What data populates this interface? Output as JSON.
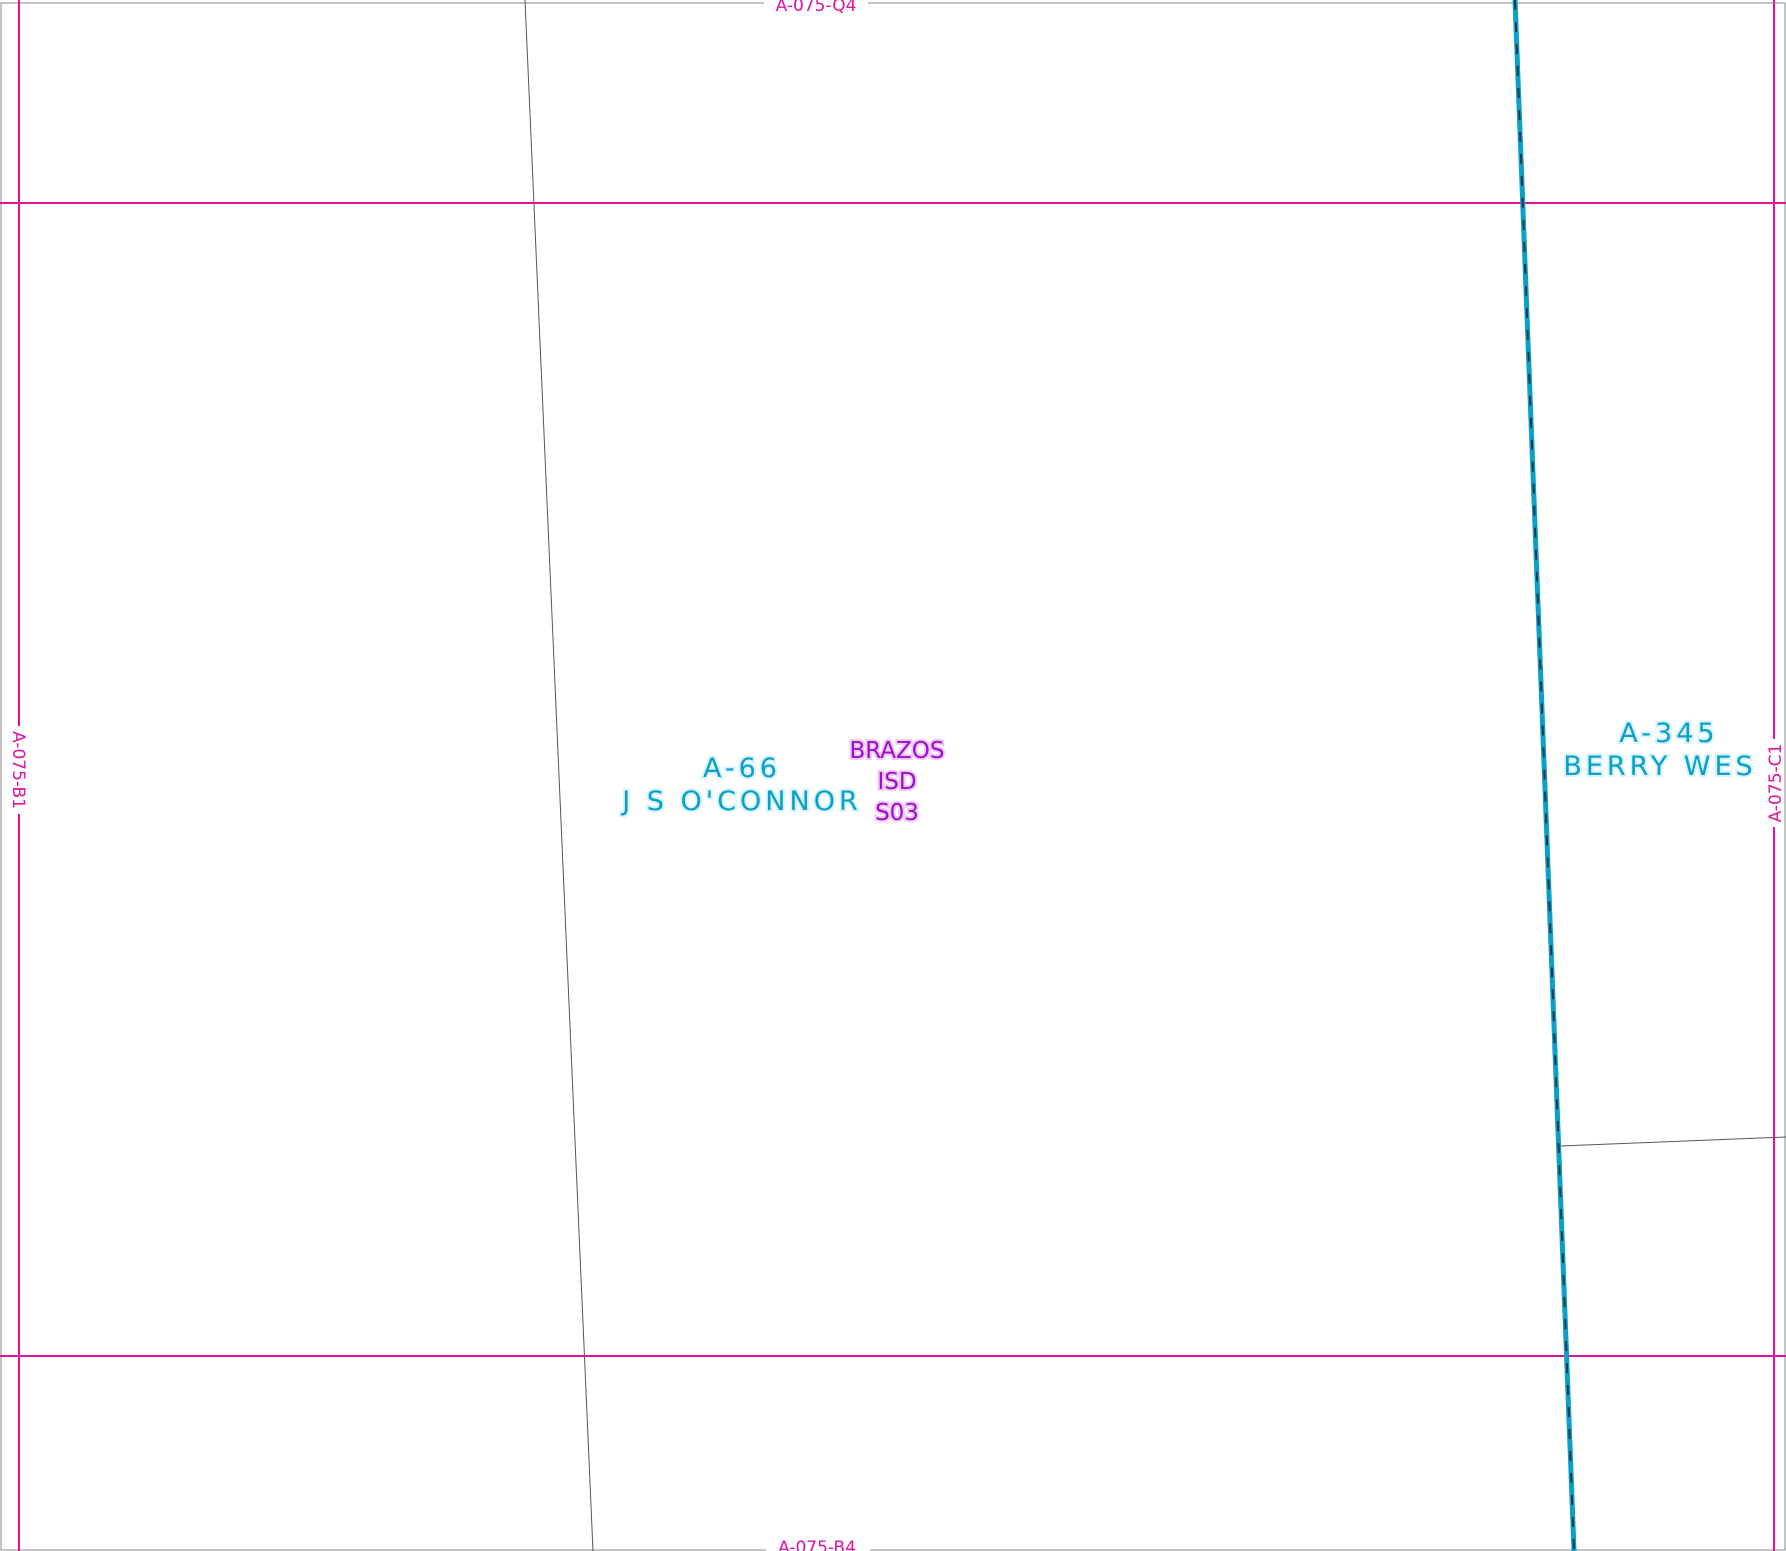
{
  "colors": {
    "grid_line": "#e0119f",
    "parcel_line": "#555555",
    "boundary_outer": "#0aa0c8",
    "boundary_inner": "#1f3650",
    "abstract_text": "#0aa0c8",
    "isd_text": "#9a10d0"
  },
  "grid_labels": {
    "top": "A-075-Q4",
    "bottom": "A-075-B4",
    "left": "A-075-B1",
    "right": "A-075-C1"
  },
  "abstracts": [
    {
      "number": "A-66",
      "name": "J S O'CONNOR"
    },
    {
      "number": "A-345",
      "name": "BERRY WES"
    }
  ],
  "isd": {
    "line1": "BRAZOS",
    "line2": "ISD",
    "line3": "S03"
  }
}
